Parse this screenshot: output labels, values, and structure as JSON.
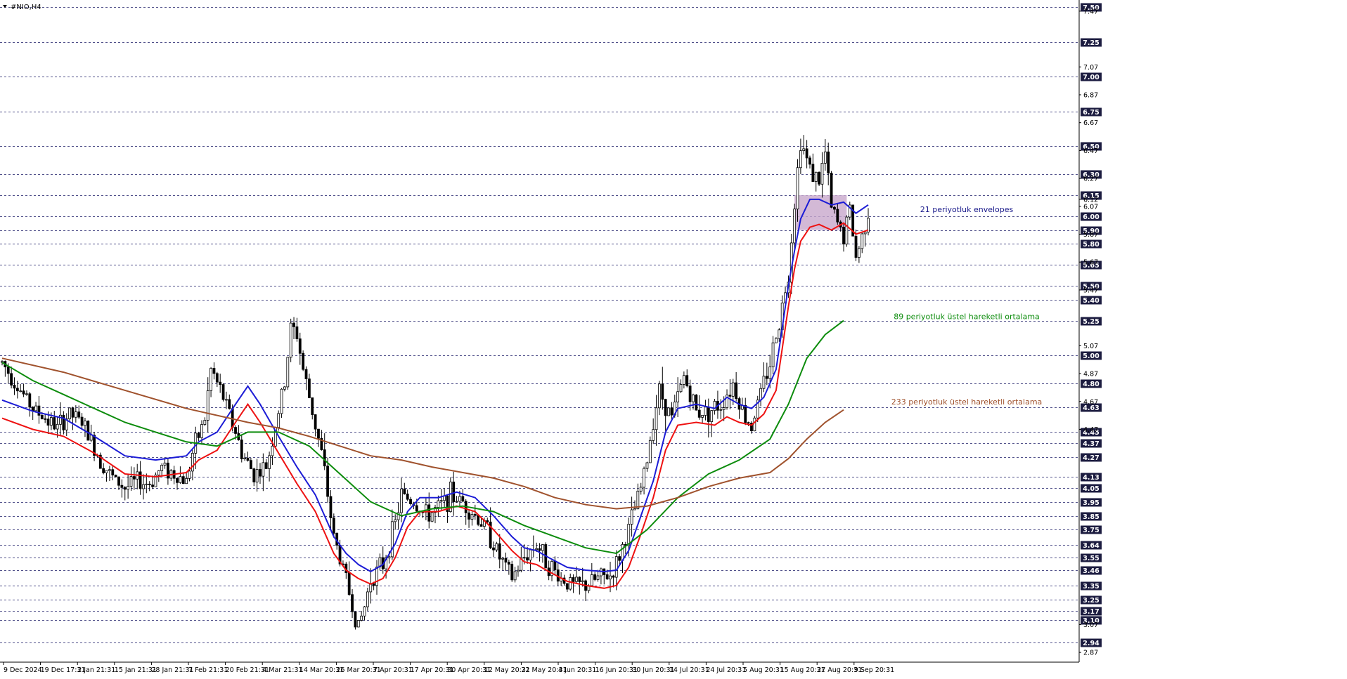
{
  "header": {
    "symbol_label": "#NIO,H4"
  },
  "chart_data": {
    "type": "candlestick",
    "title": "#NIO,H4",
    "ylim": [
      2.8,
      7.55
    ],
    "price_ticks": [
      "7.47",
      "7.07",
      "6.87",
      "6.67",
      "6.47",
      "6.27",
      "6.12",
      "6.07",
      "5.87",
      "5.67",
      "5.47",
      "5.07",
      "4.87",
      "4.67",
      "4.47",
      "3.07",
      "2.87"
    ],
    "level_badges": [
      "7.50",
      "7.25",
      "7.00",
      "6.75",
      "6.50",
      "6.30",
      "6.15",
      "6.00",
      "5.90",
      "5.80",
      "5.65",
      "5.50",
      "5.40",
      "5.25",
      "5.00",
      "4.80",
      "4.63",
      "4.45",
      "4.37",
      "4.27",
      "4.13",
      "4.05",
      "3.95",
      "3.85",
      "3.75",
      "3.64",
      "3.55",
      "3.46",
      "3.35",
      "3.25",
      "3.17",
      "3.10",
      "2.94"
    ],
    "x_labels": [
      "9 Dec 2024",
      "19 Dec 17:31",
      "2 Jan 21:31",
      "15 Jan 21:31",
      "28 Jan 21:31",
      "7 Feb 21:31",
      "20 Feb 21:31",
      "4 Mar 21:31",
      "14 Mar 20:31",
      "26 Mar 20:31",
      "7 Apr 20:31",
      "17 Apr 20:31",
      "30 Apr 20:31",
      "12 May 20:31",
      "22 May 20:31",
      "4 Jun 20:31",
      "16 Jun 20:31",
      "30 Jun 20:31",
      "14 Jul 20:31",
      "24 Jul 20:31",
      "5 Aug 20:31",
      "15 Aug 20:31",
      "27 Aug 20:31",
      "9 Sep 20:31"
    ],
    "price_path": [
      [
        0,
        4.95
      ],
      [
        6,
        4.75
      ],
      [
        10,
        4.62
      ],
      [
        14,
        4.55
      ],
      [
        18,
        4.48
      ],
      [
        22,
        4.58
      ],
      [
        26,
        4.52
      ],
      [
        32,
        4.25
      ],
      [
        36,
        4.12
      ],
      [
        40,
        4.05
      ],
      [
        44,
        4.1
      ],
      [
        48,
        4.08
      ],
      [
        52,
        4.2
      ],
      [
        56,
        4.15
      ],
      [
        60,
        4.1
      ],
      [
        62,
        4.3
      ],
      [
        66,
        4.55
      ],
      [
        68,
        4.9
      ],
      [
        72,
        4.7
      ],
      [
        76,
        4.45
      ],
      [
        78,
        4.3
      ],
      [
        82,
        4.15
      ],
      [
        86,
        4.2
      ],
      [
        88,
        4.4
      ],
      [
        92,
        4.8
      ],
      [
        94,
        5.2
      ],
      [
        96,
        5.15
      ],
      [
        98,
        4.9
      ],
      [
        100,
        4.7
      ],
      [
        104,
        4.3
      ],
      [
        108,
        3.7
      ],
      [
        112,
        3.4
      ],
      [
        114,
        3.2
      ],
      [
        116,
        3.05
      ],
      [
        118,
        3.2
      ],
      [
        120,
        3.4
      ],
      [
        124,
        3.5
      ],
      [
        128,
        3.8
      ],
      [
        130,
        4.0
      ],
      [
        134,
        3.95
      ],
      [
        138,
        3.85
      ],
      [
        142,
        3.9
      ],
      [
        146,
        4.0
      ],
      [
        150,
        3.95
      ],
      [
        154,
        3.85
      ],
      [
        158,
        3.75
      ],
      [
        162,
        3.55
      ],
      [
        166,
        3.4
      ],
      [
        170,
        3.55
      ],
      [
        174,
        3.65
      ],
      [
        178,
        3.5
      ],
      [
        182,
        3.4
      ],
      [
        186,
        3.35
      ],
      [
        190,
        3.35
      ],
      [
        194,
        3.4
      ],
      [
        198,
        3.42
      ],
      [
        200,
        3.5
      ],
      [
        204,
        3.75
      ],
      [
        208,
        4.05
      ],
      [
        210,
        4.25
      ],
      [
        212,
        4.55
      ],
      [
        214,
        4.75
      ],
      [
        218,
        4.55
      ],
      [
        222,
        4.85
      ],
      [
        226,
        4.6
      ],
      [
        230,
        4.6
      ],
      [
        234,
        4.65
      ],
      [
        238,
        4.8
      ],
      [
        242,
        4.55
      ],
      [
        244,
        4.5
      ],
      [
        246,
        4.65
      ],
      [
        250,
        4.95
      ],
      [
        254,
        5.35
      ],
      [
        256,
        5.6
      ],
      [
        258,
        6.1
      ],
      [
        260,
        6.55
      ],
      [
        262,
        6.4
      ],
      [
        264,
        6.3
      ],
      [
        266,
        6.25
      ],
      [
        268,
        6.45
      ],
      [
        270,
        6.05
      ],
      [
        272,
        5.95
      ],
      [
        274,
        5.85
      ],
      [
        276,
        6.05
      ],
      [
        278,
        5.7
      ],
      [
        280,
        5.85
      ],
      [
        282,
        6.05
      ]
    ],
    "series": [
      {
        "name": "21 periyotluk envelopes",
        "color": "#1c1cd6",
        "points": [
          [
            0,
            4.68
          ],
          [
            10,
            4.6
          ],
          [
            20,
            4.55
          ],
          [
            30,
            4.42
          ],
          [
            40,
            4.28
          ],
          [
            50,
            4.25
          ],
          [
            60,
            4.28
          ],
          [
            64,
            4.38
          ],
          [
            70,
            4.45
          ],
          [
            76,
            4.65
          ],
          [
            80,
            4.78
          ],
          [
            84,
            4.65
          ],
          [
            90,
            4.42
          ],
          [
            96,
            4.2
          ],
          [
            102,
            4.0
          ],
          [
            108,
            3.7
          ],
          [
            112,
            3.58
          ],
          [
            116,
            3.5
          ],
          [
            120,
            3.45
          ],
          [
            124,
            3.5
          ],
          [
            128,
            3.65
          ],
          [
            132,
            3.88
          ],
          [
            136,
            3.98
          ],
          [
            142,
            3.98
          ],
          [
            148,
            4.02
          ],
          [
            154,
            3.98
          ],
          [
            160,
            3.85
          ],
          [
            166,
            3.7
          ],
          [
            170,
            3.62
          ],
          [
            174,
            3.6
          ],
          [
            178,
            3.55
          ],
          [
            184,
            3.48
          ],
          [
            190,
            3.46
          ],
          [
            196,
            3.45
          ],
          [
            200,
            3.46
          ],
          [
            204,
            3.6
          ],
          [
            208,
            3.85
          ],
          [
            212,
            4.1
          ],
          [
            216,
            4.45
          ],
          [
            220,
            4.62
          ],
          [
            226,
            4.65
          ],
          [
            232,
            4.62
          ],
          [
            236,
            4.7
          ],
          [
            240,
            4.65
          ],
          [
            244,
            4.62
          ],
          [
            248,
            4.7
          ],
          [
            252,
            4.9
          ],
          [
            254,
            5.2
          ],
          [
            256,
            5.5
          ],
          [
            258,
            5.75
          ],
          [
            260,
            5.98
          ],
          [
            263,
            6.12
          ],
          [
            266,
            6.12
          ],
          [
            270,
            6.08
          ],
          [
            274,
            6.1
          ],
          [
            278,
            6.02
          ],
          [
            282,
            6.08
          ]
        ]
      },
      {
        "name": "21 periyotluk envelopes",
        "color": "#ee1111",
        "points": [
          [
            0,
            4.55
          ],
          [
            10,
            4.47
          ],
          [
            20,
            4.42
          ],
          [
            30,
            4.3
          ],
          [
            40,
            4.15
          ],
          [
            50,
            4.13
          ],
          [
            60,
            4.16
          ],
          [
            64,
            4.25
          ],
          [
            70,
            4.32
          ],
          [
            76,
            4.52
          ],
          [
            80,
            4.65
          ],
          [
            84,
            4.52
          ],
          [
            90,
            4.3
          ],
          [
            96,
            4.08
          ],
          [
            102,
            3.88
          ],
          [
            108,
            3.58
          ],
          [
            112,
            3.46
          ],
          [
            116,
            3.4
          ],
          [
            120,
            3.36
          ],
          [
            124,
            3.4
          ],
          [
            128,
            3.55
          ],
          [
            132,
            3.77
          ],
          [
            136,
            3.88
          ],
          [
            142,
            3.88
          ],
          [
            148,
            3.92
          ],
          [
            154,
            3.88
          ],
          [
            160,
            3.75
          ],
          [
            166,
            3.6
          ],
          [
            170,
            3.52
          ],
          [
            174,
            3.5
          ],
          [
            178,
            3.45
          ],
          [
            184,
            3.38
          ],
          [
            190,
            3.35
          ],
          [
            196,
            3.33
          ],
          [
            200,
            3.35
          ],
          [
            204,
            3.48
          ],
          [
            208,
            3.72
          ],
          [
            212,
            3.98
          ],
          [
            216,
            4.32
          ],
          [
            220,
            4.5
          ],
          [
            226,
            4.52
          ],
          [
            232,
            4.5
          ],
          [
            236,
            4.56
          ],
          [
            240,
            4.52
          ],
          [
            244,
            4.5
          ],
          [
            248,
            4.58
          ],
          [
            252,
            4.75
          ],
          [
            254,
            5.05
          ],
          [
            256,
            5.35
          ],
          [
            258,
            5.62
          ],
          [
            260,
            5.82
          ],
          [
            263,
            5.92
          ],
          [
            266,
            5.94
          ],
          [
            270,
            5.9
          ],
          [
            274,
            5.95
          ],
          [
            278,
            5.87
          ],
          [
            282,
            5.9
          ]
        ]
      },
      {
        "name": "89 periyotluk üstel hareketli ortalama",
        "color": "#0c8c0c",
        "points": [
          [
            0,
            4.95
          ],
          [
            10,
            4.82
          ],
          [
            20,
            4.72
          ],
          [
            30,
            4.62
          ],
          [
            40,
            4.52
          ],
          [
            50,
            4.45
          ],
          [
            60,
            4.38
          ],
          [
            70,
            4.35
          ],
          [
            80,
            4.45
          ],
          [
            90,
            4.45
          ],
          [
            100,
            4.35
          ],
          [
            110,
            4.15
          ],
          [
            120,
            3.95
          ],
          [
            130,
            3.85
          ],
          [
            140,
            3.9
          ],
          [
            150,
            3.92
          ],
          [
            160,
            3.88
          ],
          [
            170,
            3.78
          ],
          [
            180,
            3.7
          ],
          [
            190,
            3.62
          ],
          [
            200,
            3.58
          ],
          [
            210,
            3.75
          ],
          [
            220,
            3.98
          ],
          [
            230,
            4.15
          ],
          [
            240,
            4.25
          ],
          [
            250,
            4.4
          ],
          [
            256,
            4.65
          ],
          [
            262,
            4.98
          ],
          [
            268,
            5.15
          ],
          [
            274,
            5.25
          ]
        ]
      },
      {
        "name": "233 periyotluk üstel hareketli ortalama",
        "color": "#a0522d",
        "points": [
          [
            0,
            4.98
          ],
          [
            20,
            4.88
          ],
          [
            40,
            4.75
          ],
          [
            60,
            4.62
          ],
          [
            80,
            4.52
          ],
          [
            90,
            4.48
          ],
          [
            100,
            4.42
          ],
          [
            110,
            4.35
          ],
          [
            120,
            4.28
          ],
          [
            130,
            4.25
          ],
          [
            140,
            4.2
          ],
          [
            150,
            4.16
          ],
          [
            160,
            4.12
          ],
          [
            170,
            4.06
          ],
          [
            180,
            3.98
          ],
          [
            190,
            3.93
          ],
          [
            200,
            3.9
          ],
          [
            210,
            3.92
          ],
          [
            220,
            3.98
          ],
          [
            230,
            4.06
          ],
          [
            240,
            4.12
          ],
          [
            250,
            4.16
          ],
          [
            256,
            4.26
          ],
          [
            262,
            4.4
          ],
          [
            268,
            4.52
          ],
          [
            274,
            4.61
          ]
        ]
      }
    ],
    "highlight_zone": {
      "y_range": [
        5.9,
        6.15
      ],
      "x_range": [
        258,
        275
      ]
    },
    "annotations": [
      {
        "text": "21 periyotluk envelopes",
        "color": "#1c1c8c",
        "y": 6.05
      },
      {
        "text": "89 periyotluk üstel hareketli ortalama",
        "color": "#0c8c0c",
        "y": 5.28
      },
      {
        "text": "233 periyotluk üstel hareketli ortalama",
        "color": "#a0522d",
        "y": 4.67
      }
    ],
    "grid": "dashed horizontal at level badges",
    "legend": "none"
  }
}
